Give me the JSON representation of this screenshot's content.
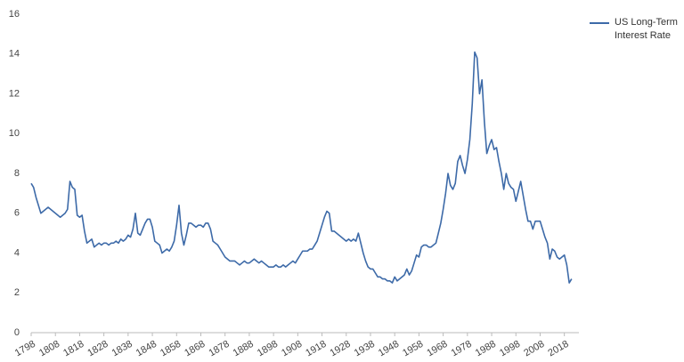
{
  "chart_data": {
    "type": "line",
    "x": [
      1798,
      1799,
      1800,
      1801,
      1802,
      1803,
      1804,
      1805,
      1806,
      1807,
      1808,
      1809,
      1810,
      1811,
      1812,
      1813,
      1814,
      1815,
      1816,
      1817,
      1818,
      1819,
      1820,
      1821,
      1822,
      1823,
      1824,
      1825,
      1826,
      1827,
      1828,
      1829,
      1830,
      1831,
      1832,
      1833,
      1834,
      1835,
      1836,
      1837,
      1838,
      1839,
      1840,
      1841,
      1842,
      1843,
      1844,
      1845,
      1846,
      1847,
      1848,
      1849,
      1850,
      1851,
      1852,
      1853,
      1854,
      1855,
      1856,
      1857,
      1858,
      1859,
      1860,
      1861,
      1862,
      1863,
      1864,
      1865,
      1866,
      1867,
      1868,
      1869,
      1870,
      1871,
      1872,
      1873,
      1874,
      1875,
      1876,
      1877,
      1878,
      1879,
      1880,
      1881,
      1882,
      1883,
      1884,
      1885,
      1886,
      1887,
      1888,
      1889,
      1890,
      1891,
      1892,
      1893,
      1894,
      1895,
      1896,
      1897,
      1898,
      1899,
      1900,
      1901,
      1902,
      1903,
      1904,
      1905,
      1906,
      1907,
      1908,
      1909,
      1910,
      1911,
      1912,
      1913,
      1914,
      1915,
      1916,
      1917,
      1918,
      1919,
      1920,
      1921,
      1922,
      1923,
      1924,
      1925,
      1926,
      1927,
      1928,
      1929,
      1930,
      1931,
      1932,
      1933,
      1934,
      1935,
      1936,
      1937,
      1938,
      1939,
      1940,
      1941,
      1942,
      1943,
      1944,
      1945,
      1946,
      1947,
      1948,
      1949,
      1950,
      1951,
      1952,
      1953,
      1954,
      1955,
      1956,
      1957,
      1958,
      1959,
      1960,
      1961,
      1962,
      1963,
      1964,
      1965,
      1966,
      1967,
      1968,
      1969,
      1970,
      1971,
      1972,
      1973,
      1974,
      1975,
      1976,
      1977,
      1978,
      1979,
      1980,
      1981,
      1982,
      1983,
      1984,
      1985,
      1986,
      1987,
      1988,
      1989,
      1990,
      1991,
      1992,
      1993,
      1994,
      1995,
      1996,
      1997,
      1998,
      1999,
      2000,
      2001,
      2002,
      2003,
      2004,
      2005,
      2006,
      2007,
      2008,
      2009,
      2010,
      2011,
      2012,
      2013,
      2014,
      2015,
      2016,
      2017,
      2018,
      2019,
      2020,
      2021
    ],
    "series": [
      {
        "name": "US Long-Term Interest Rate",
        "color": "#3d6aa8",
        "values": [
          7.5,
          7.3,
          6.8,
          6.4,
          6.0,
          6.1,
          6.2,
          6.3,
          6.2,
          6.1,
          6.0,
          5.9,
          5.8,
          5.9,
          6.0,
          6.2,
          7.6,
          7.3,
          7.2,
          5.9,
          5.8,
          5.9,
          5.1,
          4.5,
          4.6,
          4.7,
          4.3,
          4.4,
          4.5,
          4.4,
          4.5,
          4.5,
          4.4,
          4.5,
          4.5,
          4.6,
          4.5,
          4.7,
          4.6,
          4.7,
          4.9,
          4.8,
          5.2,
          6.0,
          5.0,
          4.9,
          5.2,
          5.5,
          5.7,
          5.7,
          5.3,
          4.6,
          4.5,
          4.4,
          4.0,
          4.1,
          4.2,
          4.1,
          4.3,
          4.6,
          5.4,
          6.4,
          5.0,
          4.4,
          4.9,
          5.5,
          5.5,
          5.4,
          5.3,
          5.4,
          5.4,
          5.3,
          5.5,
          5.5,
          5.2,
          4.6,
          4.5,
          4.4,
          4.2,
          4.0,
          3.8,
          3.7,
          3.6,
          3.6,
          3.6,
          3.5,
          3.4,
          3.5,
          3.6,
          3.5,
          3.5,
          3.6,
          3.7,
          3.6,
          3.5,
          3.6,
          3.5,
          3.4,
          3.3,
          3.3,
          3.3,
          3.4,
          3.3,
          3.3,
          3.4,
          3.3,
          3.4,
          3.5,
          3.6,
          3.5,
          3.7,
          3.9,
          4.1,
          4.1,
          4.1,
          4.2,
          4.2,
          4.4,
          4.6,
          5.0,
          5.4,
          5.8,
          6.1,
          6.0,
          5.1,
          5.1,
          5.0,
          4.9,
          4.8,
          4.7,
          4.6,
          4.7,
          4.6,
          4.7,
          4.6,
          5.0,
          4.5,
          4.0,
          3.6,
          3.3,
          3.2,
          3.2,
          3.0,
          2.8,
          2.8,
          2.7,
          2.7,
          2.6,
          2.6,
          2.5,
          2.8,
          2.6,
          2.7,
          2.8,
          2.9,
          3.2,
          2.9,
          3.1,
          3.5,
          3.9,
          3.8,
          4.3,
          4.4,
          4.4,
          4.3,
          4.3,
          4.4,
          4.5,
          5.0,
          5.5,
          6.2,
          7.0,
          8.0,
          7.4,
          7.2,
          7.5,
          8.6,
          8.9,
          8.4,
          8.0,
          8.7,
          9.7,
          11.5,
          14.1,
          13.8,
          12.0,
          12.7,
          10.6,
          9.0,
          9.4,
          9.7,
          9.2,
          9.3,
          8.6,
          8.0,
          7.2,
          8.0,
          7.5,
          7.3,
          7.2,
          6.6,
          7.1,
          7.6,
          6.9,
          6.2,
          5.6,
          5.6,
          5.2,
          5.6,
          5.6,
          5.6,
          5.2,
          4.8,
          4.5,
          3.7,
          4.2,
          4.1,
          3.8,
          3.7,
          3.8,
          3.9,
          3.4,
          2.5,
          2.7
        ]
      }
    ],
    "xlim": [
      1798,
      2024
    ],
    "xticks": [
      1798,
      1808,
      1818,
      1828,
      1838,
      1848,
      1858,
      1868,
      1878,
      1888,
      1898,
      1908,
      1918,
      1928,
      1938,
      1948,
      1958,
      1968,
      1978,
      1988,
      1998,
      2008,
      2018
    ],
    "ylim": [
      0,
      16
    ],
    "yticks": [
      0,
      2,
      4,
      6,
      8,
      10,
      12,
      14,
      16
    ],
    "grid": false,
    "legend": "right"
  }
}
